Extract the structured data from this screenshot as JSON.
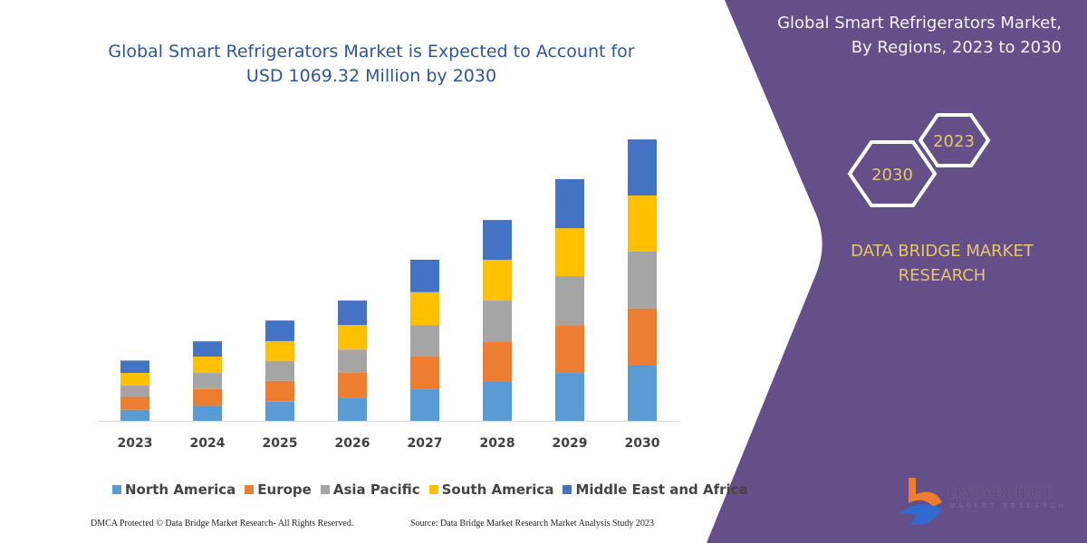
{
  "header": {
    "title_line1": "Global Smart Refrigerators Market is Expected to Account for",
    "title_line2": "USD 1069.32 Million by 2030"
  },
  "side_panel": {
    "title_line1": "Global Smart Refrigerators Market,",
    "title_line2": "By Regions, 2023 to 2030",
    "hex_2023": "2023",
    "hex_2030": "2030",
    "brand_line1": "DATA BRIDGE MARKET",
    "brand_line2": "RESEARCH",
    "logo_text": "DATA BRIDGE",
    "logo_subtext": "MARKET RESEARCH",
    "background_color": "#654f88",
    "accent_color": "#e8c56a"
  },
  "footer": {
    "left": "DMCA Protected © Data Bridge Market Research-  All Rights Reserved.",
    "right": "Source: Data Bridge Market Research  Market Analysis Study 2023"
  },
  "chart_data": {
    "type": "bar",
    "stacked": true,
    "title": "Global Smart Refrigerators Market is Expected to Account for USD 1069.32 Million by 2030",
    "xlabel": "",
    "ylabel": "",
    "ylim": [
      0,
      1069.32
    ],
    "grid": false,
    "legend_position": "bottom",
    "categories": [
      "2023",
      "2024",
      "2025",
      "2026",
      "2027",
      "2028",
      "2029",
      "2030"
    ],
    "series": [
      {
        "name": "North America",
        "color": "#5b9bd5",
        "values": [
          42,
          57,
          73,
          89,
          120,
          151,
          182,
          213
        ]
      },
      {
        "name": "Europe",
        "color": "#ed7d31",
        "values": [
          49,
          64,
          79,
          94,
          124,
          151,
          182,
          214
        ]
      },
      {
        "name": "Asia Pacific",
        "color": "#a5a5a5",
        "values": [
          44,
          61,
          76,
          88,
          120,
          155,
          186,
          216
        ]
      },
      {
        "name": "South America",
        "color": "#ffc000",
        "values": [
          47,
          62,
          75,
          93,
          125,
          155,
          182,
          213
        ]
      },
      {
        "name": "Middle East and Africa",
        "color": "#4472c4",
        "values": [
          47,
          58,
          78,
          93,
          123,
          151,
          186,
          213
        ]
      }
    ]
  }
}
